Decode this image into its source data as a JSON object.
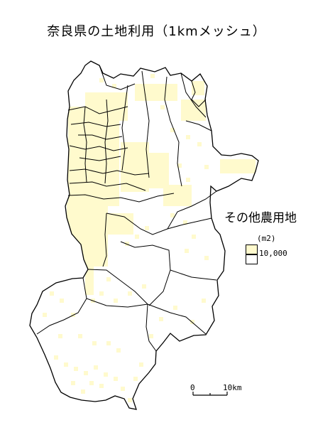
{
  "title": "奈良県の土地利用（1kmメッシュ）",
  "legend": {
    "title": "その他農用地",
    "unit": "(m2)",
    "items": [
      {
        "label": "10,000",
        "color": "#fffacd"
      },
      {
        "label": "",
        "color": "#ffffff"
      }
    ]
  },
  "scale": {
    "zero": "0",
    "ten": "10km"
  },
  "colors": {
    "land": "#fffacd",
    "outline": "#000000",
    "background": "#ffffff"
  }
}
